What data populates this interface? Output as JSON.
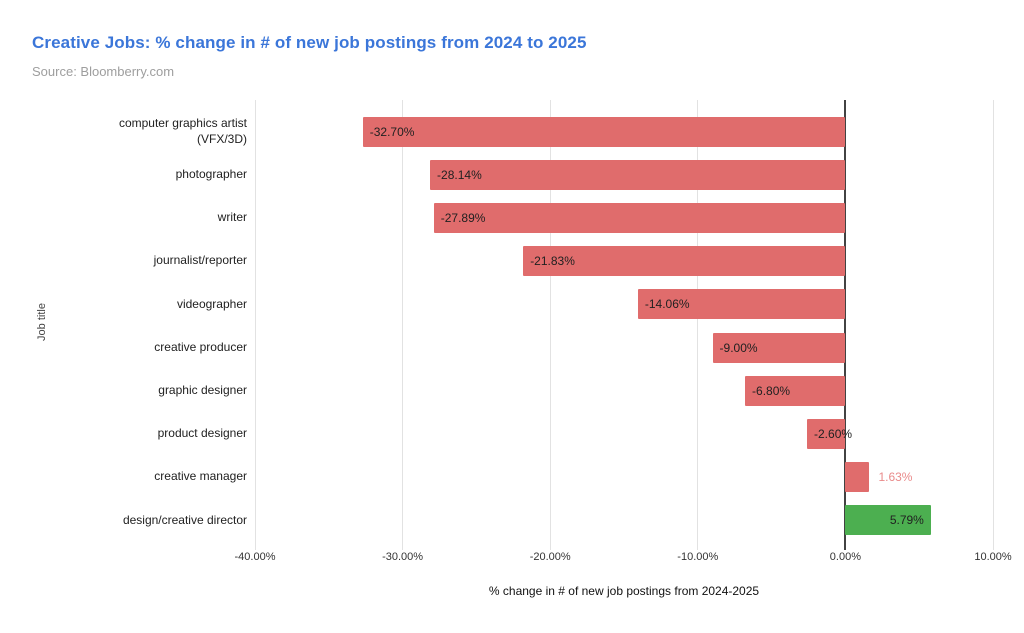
{
  "chart_data": {
    "type": "bar",
    "orientation": "horizontal",
    "title": "Creative Jobs: % change in # of new job postings from 2024 to 2025",
    "source": "Source: Bloomberry.com",
    "xlabel": "% change in # of new job postings from 2024-2025",
    "ylabel": "Job title",
    "xlim": [
      -40,
      10
    ],
    "grid": true,
    "x_tick_values": [
      -40,
      -30,
      -20,
      -10,
      0,
      10
    ],
    "x_tick_labels": [
      "-40.00%",
      "-30.00%",
      "-20.00%",
      "-10.00%",
      "0.00%",
      "10.00%"
    ],
    "categories": [
      "computer graphics artist (VFX/3D)",
      "photographer",
      "writer",
      "journalist/reporter",
      "videographer",
      "creative producer",
      "graphic designer",
      "product designer",
      "creative manager",
      "design/creative director"
    ],
    "values": [
      -32.7,
      -28.14,
      -27.89,
      -21.83,
      -14.06,
      -9.0,
      -6.8,
      -2.6,
      1.63,
      5.79
    ],
    "bars": [
      {
        "category": "computer graphics artist (VFX/3D)",
        "value": -32.7,
        "label": "-32.70%",
        "color": "#e06c6c",
        "label_placement": "inside-start",
        "label_color": "#212121"
      },
      {
        "category": "photographer",
        "value": -28.14,
        "label": "-28.14%",
        "color": "#e06c6c",
        "label_placement": "inside-start",
        "label_color": "#212121"
      },
      {
        "category": "writer",
        "value": -27.89,
        "label": "-27.89%",
        "color": "#e06c6c",
        "label_placement": "inside-start",
        "label_color": "#212121"
      },
      {
        "category": "journalist/reporter",
        "value": -21.83,
        "label": "-21.83%",
        "color": "#e06c6c",
        "label_placement": "inside-start",
        "label_color": "#212121"
      },
      {
        "category": "videographer",
        "value": -14.06,
        "label": "-14.06%",
        "color": "#e06c6c",
        "label_placement": "inside-start",
        "label_color": "#212121"
      },
      {
        "category": "creative producer",
        "value": -9.0,
        "label": "-9.00%",
        "color": "#e06c6c",
        "label_placement": "inside-start",
        "label_color": "#212121"
      },
      {
        "category": "graphic designer",
        "value": -6.8,
        "label": "-6.80%",
        "color": "#e06c6c",
        "label_placement": "inside-start",
        "label_color": "#212121"
      },
      {
        "category": "product designer",
        "value": -2.6,
        "label": "-2.60%",
        "color": "#e06c6c",
        "label_placement": "inside-start",
        "label_color": "#212121"
      },
      {
        "category": "creative manager",
        "value": 1.63,
        "label": "1.63%",
        "color": "#e06c6c",
        "label_placement": "outside-end",
        "label_color": "#e98a8a"
      },
      {
        "category": "design/creative director",
        "value": 5.79,
        "label": "5.79%",
        "color": "#4caf50",
        "label_placement": "inside-end",
        "label_color": "#212121"
      }
    ],
    "colors": {
      "negative_bar": "#e06c6c",
      "positive_bar": "#4caf50",
      "title": "#3b76d9",
      "source_text": "#9e9e9e",
      "gridline": "#e2e2e2",
      "zero_line": "#424242"
    },
    "legend": "none"
  }
}
